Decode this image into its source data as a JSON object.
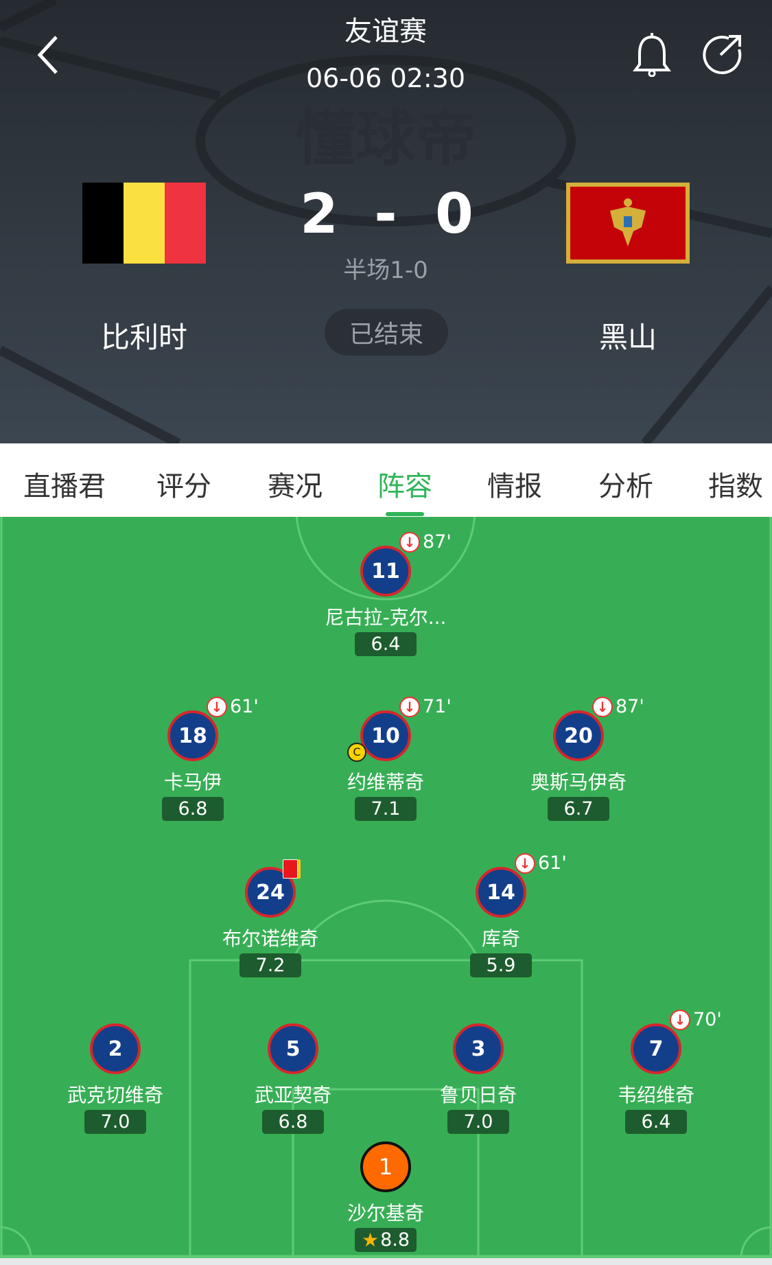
{
  "header": {
    "competition": "友谊赛",
    "datetime": "06-06 02:30",
    "watermark": "懂球帝",
    "home": {
      "name": "比利时",
      "flag_colors": [
        "#000000",
        "#fbe042",
        "#ef3340"
      ]
    },
    "away": {
      "name": "黑山",
      "flag_colors": [
        "#c40308",
        "#d4af3a"
      ]
    },
    "home_score": "2",
    "separator": "-",
    "away_score": "0",
    "halftime": "半场1-0",
    "status": "已结束",
    "icons": {
      "back": "chevron-left-icon",
      "bell": "bell-icon",
      "share": "share-icon"
    }
  },
  "tabs": [
    {
      "label": "直播君"
    },
    {
      "label": "评分"
    },
    {
      "label": "赛况"
    },
    {
      "label": "阵容",
      "active": true
    },
    {
      "label": "情报"
    },
    {
      "label": "分析"
    },
    {
      "label": "指数"
    }
  ],
  "colors": {
    "accent": "#2fb457",
    "pitch": "#37ae55",
    "kit": "#133f8a",
    "kit_border": "#d7262c",
    "goalkeeper": "#ff6a00"
  },
  "lineup": {
    "rows": [
      [
        {
          "number": "11",
          "name": "尼古拉-克尔...",
          "rating": "6.4",
          "sub_out": "87'"
        }
      ],
      [
        {
          "number": "18",
          "name": "卡马伊",
          "rating": "6.8",
          "sub_out": "61'"
        },
        {
          "number": "10",
          "name": "约维蒂奇",
          "rating": "7.1",
          "sub_out": "71'",
          "captain": "C"
        },
        {
          "number": "20",
          "name": "奥斯马伊奇",
          "rating": "6.7",
          "sub_out": "87'"
        }
      ],
      [
        {
          "number": "24",
          "name": "布尔诺维奇",
          "rating": "7.2",
          "card": "second-yellow-red"
        },
        {
          "number": "14",
          "name": "库奇",
          "rating": "5.9",
          "sub_out": "61'"
        }
      ],
      [
        {
          "number": "2",
          "name": "武克切维奇",
          "rating": "7.0"
        },
        {
          "number": "5",
          "name": "武亚契奇",
          "rating": "6.8"
        },
        {
          "number": "3",
          "name": "鲁贝日奇",
          "rating": "7.0"
        },
        {
          "number": "7",
          "name": "韦绍维奇",
          "rating": "6.4",
          "sub_out": "70'"
        }
      ],
      [
        {
          "number": "1",
          "name": "沙尔基奇",
          "rating": "8.8",
          "goalkeeper": true,
          "best_player": true
        }
      ]
    ]
  }
}
